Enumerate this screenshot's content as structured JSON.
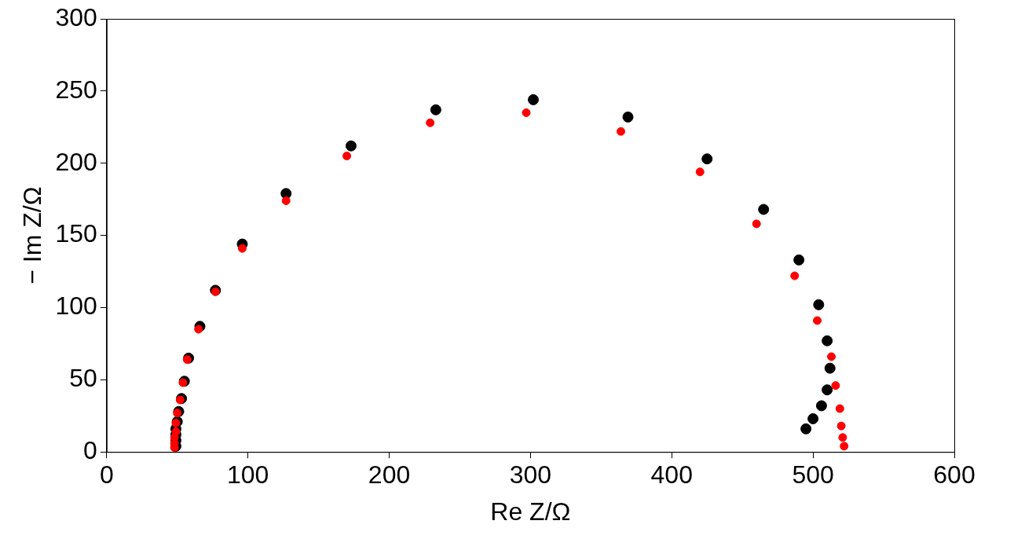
{
  "chart_data": {
    "type": "scatter",
    "x_label": "Re Z/Ω",
    "y_label": "− Im Z/Ω",
    "xlim": [
      0,
      600
    ],
    "xticks": [
      0,
      100,
      200,
      300,
      400,
      500,
      600
    ],
    "ylim": [
      0,
      300
    ],
    "yticks": [
      0,
      50,
      100,
      150,
      200,
      250,
      300
    ],
    "grid": false,
    "series": [
      {
        "color": "#ff0000",
        "marker": "circle",
        "x": [
          48,
          48,
          48,
          49,
          49,
          50,
          52,
          54,
          57,
          65,
          77,
          96,
          127,
          170,
          229,
          297,
          364,
          420,
          460,
          487,
          503,
          513,
          516,
          519,
          520,
          521,
          522
        ],
        "values": [
          3,
          6,
          10,
          14,
          20,
          27,
          36,
          48,
          64,
          85,
          111,
          141,
          174,
          205,
          228,
          235,
          222,
          194,
          158,
          122,
          91,
          66,
          46,
          30,
          18,
          10,
          4
        ]
      },
      {
        "color": "#000000",
        "marker": "circle",
        "x": [
          49,
          49,
          49,
          49,
          50,
          51,
          53,
          55,
          58,
          66,
          77,
          96,
          127,
          173,
          233,
          302,
          369,
          425,
          465,
          490,
          504,
          510,
          512,
          510,
          506,
          500,
          495
        ],
        "values": [
          4,
          8,
          12,
          16,
          21,
          28,
          37,
          49,
          65,
          87,
          112,
          144,
          179,
          212,
          237,
          244,
          232,
          203,
          168,
          133,
          102,
          77,
          58,
          43,
          32,
          23,
          16
        ]
      }
    ]
  }
}
